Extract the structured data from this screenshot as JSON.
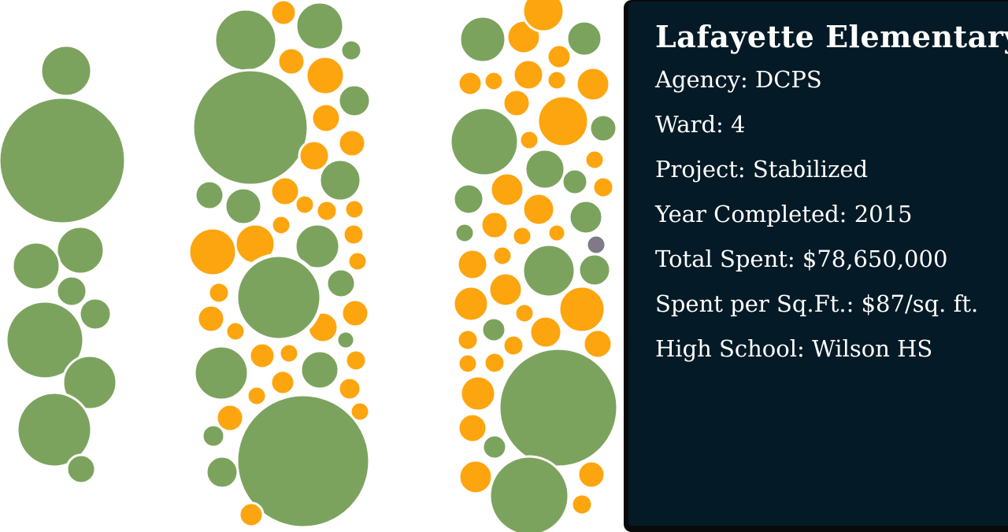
{
  "colors": {
    "stabilized": "#7ca35e",
    "other": "#fda50f",
    "highlight": "#7f7a86",
    "panel_bg": "#041a26",
    "panel_text": "#ffffff"
  },
  "chart_data": {
    "type": "bubble-cluster",
    "selected_bubble": "Lafayette Elementary",
    "columns": 3
  },
  "panel": {
    "title": "Lafayette Elementary",
    "rows": [
      {
        "label": "Agency:",
        "value": "DCPS"
      },
      {
        "label": "Ward:",
        "value": "4"
      },
      {
        "label": "Project:",
        "value": "Stabilized"
      },
      {
        "label": "Year Completed:",
        "value": "2015"
      },
      {
        "label": "Total Spent:",
        "value": "$78,650,000"
      },
      {
        "label": "Spent per Sq.Ft.:",
        "value": "$87/sq. ft."
      },
      {
        "label": "High School:",
        "value": "Wilson HS"
      }
    ]
  }
}
